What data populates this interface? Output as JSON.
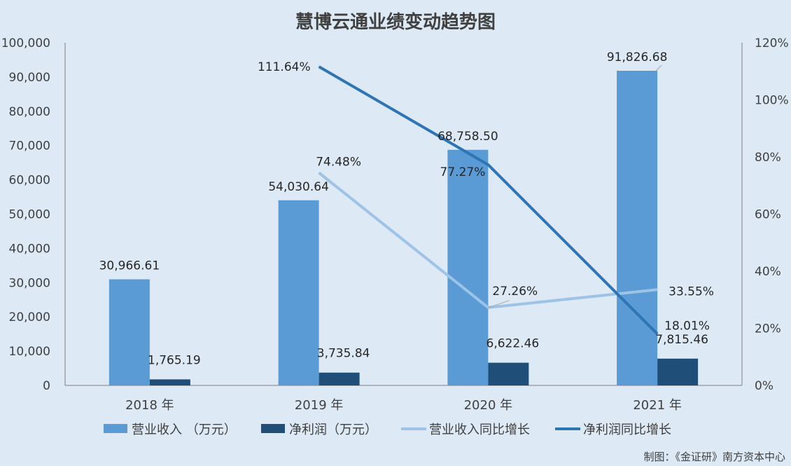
{
  "chart_data": {
    "type": "bar",
    "title": "慧博云通业绩变动趋势图",
    "categories": [
      "2018 年",
      "2019 年",
      "2020 年",
      "2021 年"
    ],
    "y_left": {
      "ylim": [
        0,
        100000
      ],
      "ticks": [
        "0",
        "10,000",
        "20,000",
        "30,000",
        "40,000",
        "50,000",
        "60,000",
        "70,000",
        "80,000",
        "90,000",
        "100,000"
      ]
    },
    "y_right": {
      "ylim": [
        0,
        120
      ],
      "ticks": [
        "0%",
        "20%",
        "40%",
        "60%",
        "80%",
        "100%",
        "120%"
      ]
    },
    "series": [
      {
        "name": "营业收入 （万元）",
        "kind": "bar",
        "axis": "left",
        "color": "#5b9bd5",
        "values": [
          30966.61,
          54030.64,
          68758.5,
          91826.68
        ],
        "labels": [
          "30,966.61",
          "54,030.64",
          "68,758.50",
          "91,826.68"
        ]
      },
      {
        "name": "净利润（万元）",
        "kind": "bar",
        "axis": "left",
        "color": "#1f4e79",
        "values": [
          1765.19,
          3735.84,
          6622.46,
          7815.46
        ],
        "labels": [
          "1,765.19",
          "3,735.84",
          "6,622.46",
          "7,815.46"
        ]
      },
      {
        "name": "营业收入同比增长",
        "kind": "line",
        "axis": "right",
        "color": "#9dc3e6",
        "values": [
          null,
          74.48,
          27.26,
          33.55
        ],
        "labels": [
          "",
          "74.48%",
          "27.26%",
          "33.55%"
        ]
      },
      {
        "name": "净利润同比增长",
        "kind": "line",
        "axis": "right",
        "color": "#2e75b6",
        "values": [
          null,
          111.64,
          77.27,
          18.01
        ],
        "labels": [
          "",
          "111.64%",
          "77.27%",
          "18.01%"
        ]
      }
    ],
    "legend_position": "bottom",
    "grid": false
  },
  "source_note": "制图：《金证研》南方资本中心"
}
